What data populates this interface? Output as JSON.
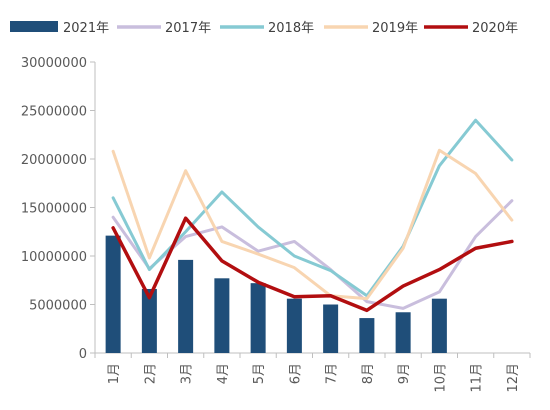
{
  "chart_data": {
    "type": "bar+line",
    "categories": [
      "1月",
      "2月",
      "3月",
      "4月",
      "5月",
      "6月",
      "7月",
      "8月",
      "9月",
      "10月",
      "11月",
      "12月"
    ],
    "ylim": [
      0,
      30000000
    ],
    "yticks": [
      "0",
      "5000000",
      "10000000",
      "15000000",
      "20000000",
      "25000000",
      "30000000"
    ],
    "grid": false,
    "legend_position": "top",
    "bar_series": {
      "name": "2021年",
      "color": "#1F4E79",
      "values": [
        12100000,
        6600000,
        9600000,
        7700000,
        7200000,
        5600000,
        5000000,
        3600000,
        4200000,
        5600000,
        null,
        null
      ]
    },
    "line_series": [
      {
        "name": "2017年",
        "color": "#C9BEDD",
        "values": [
          14000000,
          8700000,
          12000000,
          13000000,
          10500000,
          11500000,
          8600000,
          5300000,
          4600000,
          6300000,
          12000000,
          15700000
        ]
      },
      {
        "name": "2018年",
        "color": "#86CAD3",
        "values": [
          16000000,
          8600000,
          12500000,
          16600000,
          13000000,
          10000000,
          8500000,
          5900000,
          11000000,
          19300000,
          24000000,
          19900000
        ]
      },
      {
        "name": "2019年",
        "color": "#F8D5B1",
        "values": [
          20800000,
          9800000,
          18800000,
          11500000,
          10200000,
          8800000,
          5900000,
          5600000,
          10800000,
          20900000,
          18500000,
          13700000
        ]
      },
      {
        "name": "2020年",
        "color": "#B20E10",
        "values": [
          12900000,
          5700000,
          13900000,
          9500000,
          7300000,
          5800000,
          5900000,
          4400000,
          6900000,
          8600000,
          10800000,
          11500000
        ]
      }
    ]
  }
}
